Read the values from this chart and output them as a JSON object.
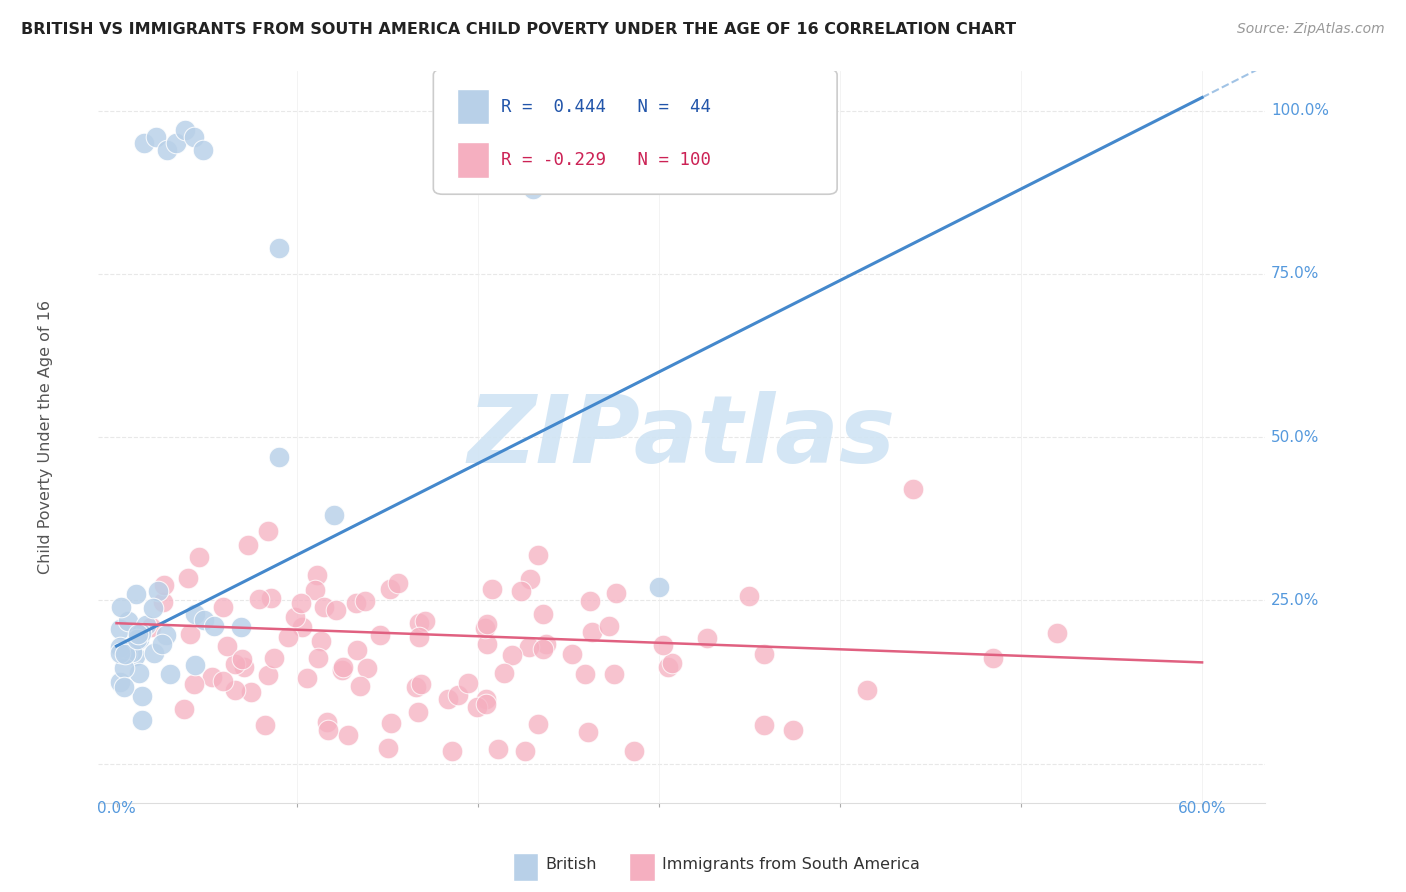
{
  "title": "BRITISH VS IMMIGRANTS FROM SOUTH AMERICA CHILD POVERTY UNDER THE AGE OF 16 CORRELATION CHART",
  "source": "Source: ZipAtlas.com",
  "ylabel": "Child Poverty Under the Age of 16",
  "british_R": 0.444,
  "british_N": 44,
  "immigrant_R": -0.229,
  "immigrant_N": 100,
  "blue_color": "#b8d0e8",
  "pink_color": "#f5afc0",
  "blue_line_color": "#4488cc",
  "pink_line_color": "#e06080",
  "watermark_text": "ZIPatlas",
  "watermark_color": "#d0e4f4",
  "background_color": "#ffffff",
  "grid_color": "#e8e8e8",
  "xlim": [
    0.0,
    0.6
  ],
  "ylim": [
    -0.05,
    1.05
  ],
  "x_ticks": [
    0.0,
    0.1,
    0.2,
    0.3,
    0.4,
    0.5,
    0.6
  ],
  "y_ticks": [
    0.0,
    0.25,
    0.5,
    0.75,
    1.0
  ],
  "y_tick_labels_right": [
    "",
    "25.0%",
    "50.0%",
    "75.0%",
    "100.0%"
  ],
  "blue_trend_x0": 0.0,
  "blue_trend_y0": 0.18,
  "blue_trend_x1": 0.6,
  "blue_trend_y1": 1.02,
  "pink_trend_x0": 0.0,
  "pink_trend_y0": 0.215,
  "pink_trend_x1": 0.6,
  "pink_trend_y1": 0.155,
  "marker_size": 220,
  "british_seed": 7,
  "immigrant_seed": 42
}
